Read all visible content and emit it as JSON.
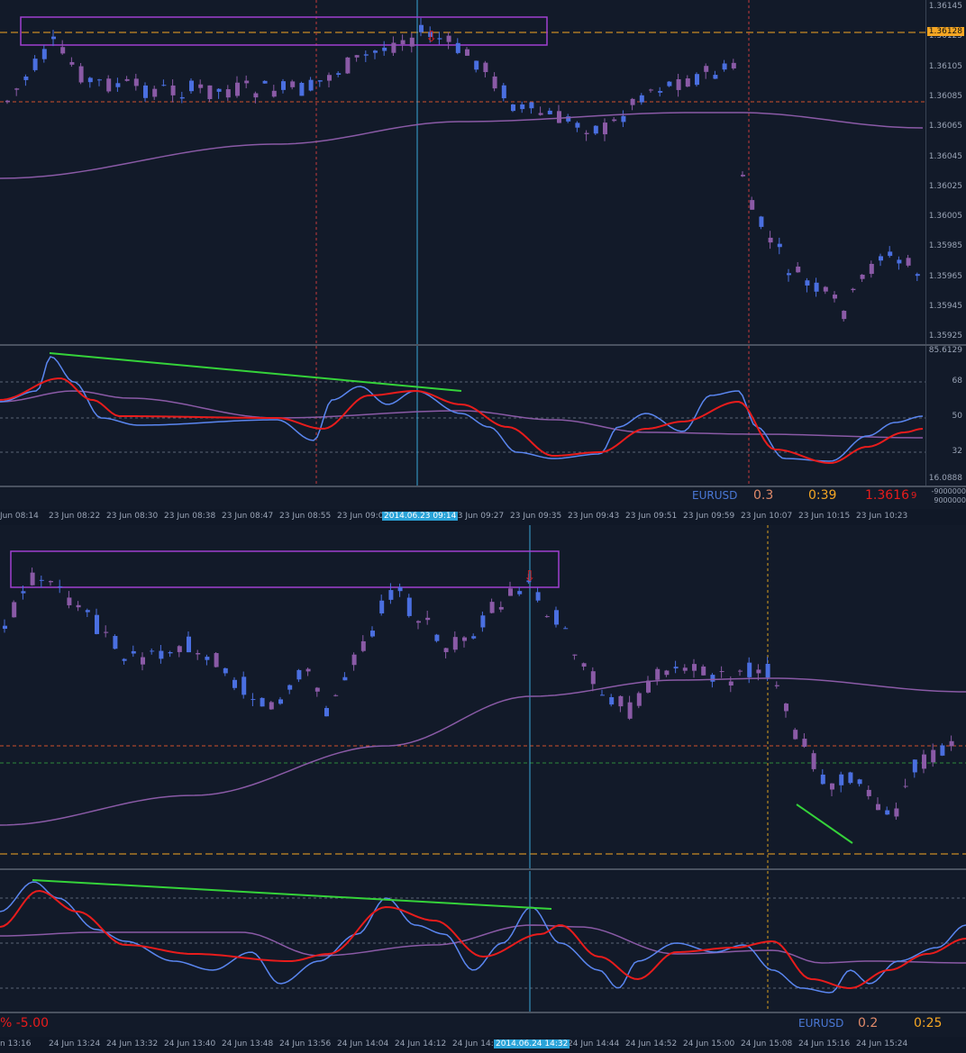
{
  "top_chart": {
    "price_labels": [
      "1.36145",
      "1.36125",
      "1.36105",
      "1.36085",
      "1.36065",
      "1.36045",
      "1.36025",
      "1.36005",
      "1.35985",
      "1.35965",
      "1.35945",
      "1.35925"
    ],
    "current_price_badge": "1.36128",
    "indicator_labels": [
      "85.6129",
      "68",
      "50",
      "32",
      "16.0888"
    ],
    "lower_axis_labels": [
      "-9000000",
      "9000000"
    ],
    "info": {
      "symbol": "EURUSD",
      "spread": "0.3",
      "timer": "0:39",
      "price": "1.3616",
      "price_small": "9"
    },
    "time_labels": [
      "Jun 08:14",
      "23 Jun 08:22",
      "23 Jun 08:30",
      "23 Jun 08:38",
      "23 Jun 08:47",
      "23 Jun 08:55",
      "23 Jun 09:0",
      "23 Jun 09:19",
      "23 Jun 09:27",
      "23 Jun 09:35",
      "23 Jun 09:43",
      "23 Jun 09:51",
      "23 Jun 09:59",
      "23 Jun 10:07",
      "23 Jun 10:15",
      "23 Jun 10:23"
    ],
    "time_highlight": "2014.06.23 09:14",
    "colors": {
      "bull": "#4a6fe0",
      "bear": "#8a5aa6",
      "ma": "#8a5aa6",
      "fast": "#5a86f0",
      "slow": "#e81c1c",
      "divergence": "#35d33a",
      "level": "#f5a623"
    }
  },
  "bottom_chart": {
    "indicator_left_labels": [
      "% -5.00"
    ],
    "info": {
      "symbol": "EURUSD",
      "spread": "0.2",
      "timer": "0:25"
    },
    "time_labels": [
      "n 13:16",
      "24 Jun 13:24",
      "24 Jun 13:32",
      "24 Jun 13:40",
      "24 Jun 13:48",
      "24 Jun 13:56",
      "24 Jun 14:04",
      "24 Jun 14:12",
      "24 Jun 14:20",
      "24 Jun 14:36",
      "24 Jun 14:44",
      "24 Jun 14:52",
      "24 Jun 15:00",
      "24 Jun 15:08",
      "24 Jun 15:16",
      "24 Jun 15:24"
    ],
    "time_highlight": "2014.06.24 14:32"
  }
}
